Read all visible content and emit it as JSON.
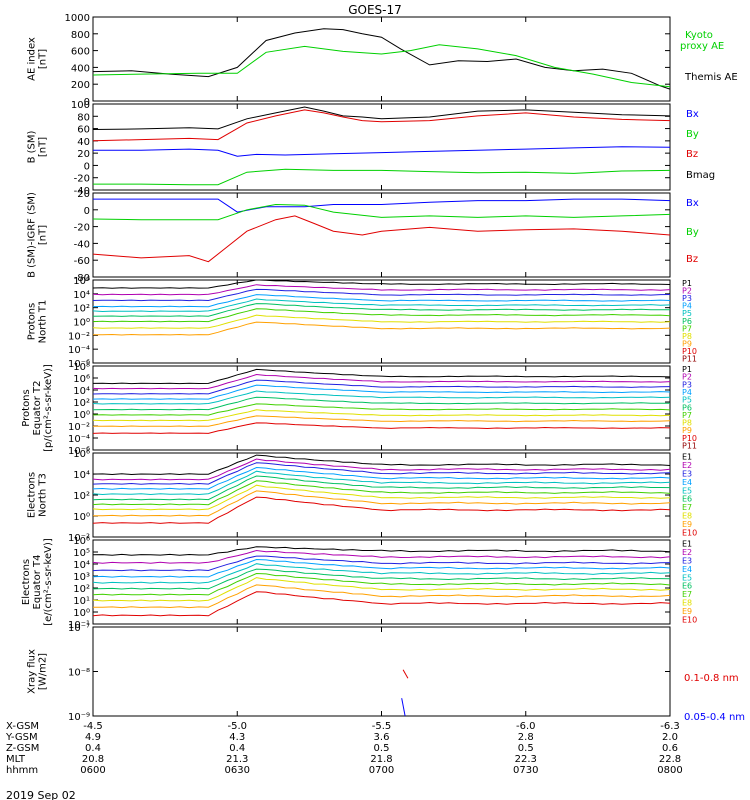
{
  "title": "GOES-17",
  "date_label": "2019 Sep 02",
  "colors": {
    "black": "#000000",
    "red": "#e00000",
    "green": "#00d000",
    "blue": "#0000ff",
    "P": [
      "#000000",
      "#b000b0",
      "#2020e0",
      "#00a0ff",
      "#00c0c0",
      "#00c060",
      "#40d000",
      "#e0e000",
      "#ffa000",
      "#e00000",
      "#900000"
    ],
    "E": [
      "#000000",
      "#b000b0",
      "#2020e0",
      "#00a0ff",
      "#00c0c0",
      "#00c060",
      "#40d000",
      "#e0e000",
      "#ffa000",
      "#e00000",
      "#900000"
    ]
  },
  "axis_rows": {
    "labels": [
      "X-GSM",
      "Y-GSM",
      "Z-GSM",
      "MLT",
      "hhmm"
    ],
    "columns": [
      {
        "x": "-4.5",
        "y": "4.9",
        "z": "0.4",
        "mlt": "20.8",
        "hhmm": "0600"
      },
      {
        "x": "-5.0",
        "y": "4.3",
        "z": "0.4",
        "mlt": "21.3",
        "hhmm": "0630"
      },
      {
        "x": "-5.5",
        "y": "3.6",
        "z": "0.5",
        "mlt": "21.8",
        "hhmm": "0700"
      },
      {
        "x": "-6.0",
        "y": "2.8",
        "z": "0.5",
        "mlt": "22.3",
        "hhmm": "0730"
      },
      {
        "x": "-6.3",
        "y": "2.0",
        "z": "0.6",
        "mlt": "22.8",
        "hhmm": "0800"
      }
    ]
  },
  "chart_data": [
    {
      "type": "line",
      "id": "ae",
      "ylabel": [
        "AE index",
        "[nT]"
      ],
      "yticks": [
        "1000",
        "800",
        "600",
        "400",
        "200",
        "0"
      ],
      "ylim": [
        0,
        1000
      ],
      "legend": [
        "Kyoto",
        "proxy AE",
        "Themis AE"
      ],
      "series": [
        {
          "name": "Themis AE",
          "color": "black",
          "x": [
            0,
            8,
            16,
            24,
            30,
            36,
            42,
            48,
            52,
            56,
            60,
            64,
            70,
            76,
            82,
            88,
            94,
            100,
            106,
            112,
            118,
            120
          ],
          "y": [
            350,
            360,
            320,
            290,
            400,
            720,
            810,
            860,
            850,
            800,
            760,
            620,
            430,
            480,
            470,
            500,
            400,
            360,
            380,
            330,
            180,
            140
          ]
        },
        {
          "name": "Kyoto proxy AE",
          "color": "green",
          "x": [
            0,
            10,
            22,
            30,
            36,
            44,
            52,
            60,
            66,
            72,
            80,
            88,
            96,
            104,
            112,
            120
          ],
          "y": [
            310,
            320,
            330,
            330,
            580,
            650,
            590,
            560,
            600,
            670,
            620,
            540,
            400,
            320,
            220,
            170
          ]
        }
      ]
    },
    {
      "type": "line",
      "id": "b",
      "ylabel": [
        "B (SM)",
        "[nT]"
      ],
      "yticks": [
        "100",
        "80",
        "60",
        "40",
        "20",
        "0",
        "-20",
        "-40"
      ],
      "ylim": [
        -45,
        100
      ],
      "legend": [
        "Bx",
        "By",
        "Bz",
        "Bmag"
      ],
      "series": [
        {
          "name": "Bmag",
          "color": "black",
          "x": [
            0,
            10,
            20,
            26,
            32,
            38,
            44,
            48,
            52,
            56,
            60,
            70,
            80,
            90,
            100,
            110,
            120
          ],
          "y": [
            57,
            58,
            60,
            58,
            75,
            85,
            95,
            88,
            80,
            78,
            75,
            78,
            88,
            90,
            86,
            82,
            80
          ]
        },
        {
          "name": "Bz",
          "color": "red",
          "x": [
            0,
            10,
            20,
            26,
            32,
            38,
            44,
            48,
            52,
            56,
            60,
            70,
            80,
            90,
            100,
            110,
            120
          ],
          "y": [
            38,
            40,
            42,
            40,
            68,
            80,
            90,
            85,
            78,
            72,
            70,
            72,
            80,
            85,
            78,
            74,
            72
          ]
        },
        {
          "name": "Bx",
          "color": "blue",
          "x": [
            0,
            10,
            20,
            26,
            30,
            34,
            40,
            50,
            60,
            70,
            80,
            90,
            100,
            110,
            120
          ],
          "y": [
            22,
            22,
            24,
            22,
            12,
            15,
            14,
            16,
            18,
            20,
            22,
            24,
            26,
            28,
            27
          ]
        },
        {
          "name": "By",
          "color": "green",
          "x": [
            0,
            10,
            20,
            26,
            32,
            40,
            50,
            60,
            70,
            80,
            90,
            100,
            110,
            120
          ],
          "y": [
            -35,
            -35,
            -36,
            -36,
            -15,
            -10,
            -12,
            -12,
            -14,
            -16,
            -15,
            -17,
            -13,
            -12
          ]
        }
      ]
    },
    {
      "type": "line",
      "id": "bigrf",
      "ylabel": [
        "B (SM)-IGRF (SM)",
        "[nT]"
      ],
      "yticks": [
        "20",
        "0",
        "-20",
        "-40",
        "-60",
        "-80"
      ],
      "ylim": [
        -90,
        20
      ],
      "legend": [
        "Bx",
        "By",
        "Bz"
      ],
      "series": [
        {
          "name": "Bx",
          "color": "blue",
          "x": [
            0,
            10,
            20,
            26,
            30,
            36,
            44,
            50,
            60,
            70,
            80,
            90,
            100,
            110,
            120
          ],
          "y": [
            12,
            12,
            12,
            12,
            -5,
            2,
            2,
            5,
            5,
            8,
            10,
            10,
            12,
            12,
            10
          ]
        },
        {
          "name": "By",
          "color": "green",
          "x": [
            0,
            10,
            20,
            26,
            32,
            38,
            44,
            50,
            60,
            70,
            80,
            90,
            100,
            110,
            120
          ],
          "y": [
            -14,
            -15,
            -15,
            -15,
            -2,
            5,
            4,
            -5,
            -12,
            -10,
            -12,
            -10,
            -12,
            -10,
            -8
          ]
        },
        {
          "name": "Bz",
          "color": "red",
          "x": [
            0,
            10,
            20,
            24,
            28,
            32,
            38,
            42,
            46,
            50,
            56,
            60,
            70,
            80,
            90,
            100,
            110,
            120
          ],
          "y": [
            -60,
            -65,
            -62,
            -70,
            -50,
            -30,
            -15,
            -10,
            -20,
            -30,
            -35,
            -30,
            -25,
            -30,
            -28,
            -27,
            -30,
            -35
          ]
        }
      ]
    },
    {
      "type": "line",
      "scale": "log",
      "id": "pn",
      "ylabel": [
        "Protons",
        "North T1"
      ],
      "yticks": [
        "10⁶",
        "10⁴",
        "10²",
        "10⁰",
        "10⁻²",
        "10⁻⁴",
        "10⁻⁶"
      ],
      "ylim": [
        -6.5,
        6
      ],
      "legend": [
        "P1",
        "P2",
        "P3",
        "P4",
        "P5",
        "P6",
        "P7",
        "P8",
        "P9",
        "P10",
        "P11"
      ],
      "levels": [
        5.2,
        4.3,
        3.5,
        2.6,
        1.9,
        1.2,
        0.4,
        -0.6,
        -1.6,
        -99,
        -99
      ],
      "bump": [
        1.0,
        1.2,
        1.4,
        1.5,
        1.5,
        1.6,
        1.6,
        1.6,
        1.6,
        0,
        0
      ]
    },
    {
      "type": "line",
      "scale": "log",
      "id": "pe",
      "ylabel": [
        "Protons",
        "Equator T2",
        "[p/(cm²-s-sr-keV)]"
      ],
      "yticks": [
        "10⁸",
        "10⁶",
        "10⁴",
        "10²",
        "10⁰",
        "10⁻²",
        "10⁻⁴",
        "10⁻⁶"
      ],
      "ylim": [
        -6.5,
        8
      ],
      "legend": [
        "P1",
        "P2",
        "P3",
        "P4",
        "P5",
        "P6",
        "P7",
        "P8",
        "P9",
        "P10",
        "P11"
      ],
      "levels": [
        5.8,
        4.9,
        4.0,
        3.1,
        2.2,
        1.2,
        0.2,
        -0.8,
        -1.8,
        -3.0,
        -99
      ],
      "bump": [
        2.0,
        2.0,
        2.0,
        2.0,
        1.8,
        1.8,
        1.6,
        1.5,
        1.5,
        1.5,
        0
      ]
    },
    {
      "type": "line",
      "scale": "log",
      "id": "en",
      "ylabel": [
        "Electrons",
        "North T3"
      ],
      "yticks": [
        "10⁶",
        "10⁴",
        "10²",
        "10⁰",
        "10⁻²"
      ],
      "ylim": [
        -2.5,
        6
      ],
      "legend": [
        "E1",
        "E2",
        "E3",
        "E4",
        "E5",
        "E6",
        "E7",
        "E8",
        "E9",
        "E10"
      ],
      "levels": [
        4.5,
        4.0,
        3.6,
        3.1,
        2.6,
        2.1,
        1.6,
        1.1,
        0.5,
        -0.2
      ],
      "bump": [
        1.6,
        1.7,
        1.8,
        1.8,
        1.9,
        2.0,
        2.0,
        2.0,
        2.1,
        2.2
      ]
    },
    {
      "type": "line",
      "scale": "log",
      "id": "ee",
      "ylabel": [
        "Electrons",
        "Equator T4",
        "[e/(cm²-s-sr-keV)]"
      ],
      "yticks": [
        "10⁶",
        "10⁵",
        "10⁴",
        "10³",
        "10²",
        "10¹",
        "10⁰",
        "10⁻¹"
      ],
      "ylim": [
        -1.3,
        6.3
      ],
      "legend": [
        "E1",
        "E2",
        "E3",
        "E4",
        "E5",
        "E6",
        "E7",
        "E8",
        "E9",
        "E10"
      ],
      "levels": [
        5.2,
        4.6,
        4.0,
        3.5,
        3.0,
        2.5,
        2.0,
        1.5,
        0.9,
        0.2
      ],
      "bump": [
        0.6,
        0.9,
        1.1,
        1.3,
        1.4,
        1.5,
        1.6,
        1.7,
        1.7,
        1.8
      ]
    },
    {
      "type": "line",
      "scale": "log",
      "id": "xray",
      "ylabel": [
        "Xray flux",
        "[W/m2]"
      ],
      "yticks": [
        "10⁻⁷",
        "10⁻⁸",
        "10⁻⁹"
      ],
      "ylim": [
        -9,
        -7
      ],
      "legend": [
        "0.1-0.8 nm",
        "0.05-0.4 nm"
      ],
      "series": [
        {
          "name": "0.1-0.8 nm",
          "color": "red",
          "x": [
            64.5,
            65.5
          ],
          "y": [
            -7.96,
            -8.15
          ]
        },
        {
          "name": "0.05-0.4 nm",
          "color": "blue",
          "x": [
            64.2,
            64.9
          ],
          "y": [
            -8.6,
            -9.0
          ]
        }
      ]
    }
  ]
}
